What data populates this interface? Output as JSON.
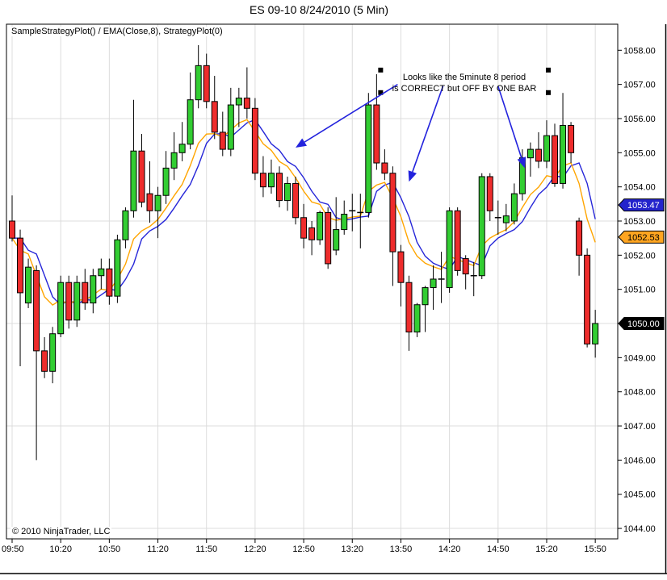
{
  "title": "ES 09-10  8/24/2010 (5 Min)",
  "indicator_label": "SampleStrategyPlot() / EMA(Close,8), StrategyPlot(0)",
  "copyright": "© 2010 NinjaTrader, LLC",
  "annotation": {
    "line1": "Looks like the 5minute 8 period",
    "line2": "is CORRECT but OFF BY ONE BAR"
  },
  "colors": {
    "background": "#ffffff",
    "border": "#000000",
    "grid": "#dcdcdc",
    "candle_up": "#32cd32",
    "candle_down": "#ee2c2c",
    "candle_outline": "#000000",
    "ema_line": "#ffa500",
    "strategy_line": "#2626d8",
    "arrow": "#2323dd",
    "marker": "#000000",
    "tag_blue_bg": "#2323cc",
    "tag_orange_bg": "#ffa520",
    "tag_black_bg": "#000000",
    "tag_light_text": "#ffffff",
    "tag_dark_text": "#000000",
    "text": "#000000"
  },
  "price_axis": {
    "labels": [
      "1058.00",
      "1057.00",
      "1056.00",
      "1055.00",
      "1054.00",
      "1053.00",
      "1052.00",
      "1051.00",
      "1050.00",
      "1049.00",
      "1048.00",
      "1047.00",
      "1046.00",
      "1045.00",
      "1044.00"
    ],
    "top_price": 1058,
    "step": 1,
    "tags": [
      {
        "label": "1053.47",
        "value": 1053.47,
        "style": "blue"
      },
      {
        "label": "1052.53",
        "value": 1052.53,
        "style": "orange"
      },
      {
        "label": "1050.00",
        "value": 1050.0,
        "style": "black"
      }
    ]
  },
  "time_axis": {
    "labels": [
      "09:50",
      "10:20",
      "10:50",
      "11:20",
      "11:50",
      "12:20",
      "12:50",
      "13:20",
      "13:50",
      "14:20",
      "14:50",
      "15:20",
      "15:50"
    ],
    "label_every_bars": 6
  },
  "chart_data": {
    "type": "candlestick",
    "title": "ES 09-10  8/24/2010 (5 Min)",
    "interval": "5 Min",
    "ylim": [
      1043.7,
      1058.75
    ],
    "grid_h_prices": [
      1056,
      1053,
      1050,
      1047,
      1044
    ],
    "last_price": "1050.00",
    "overlays": [
      {
        "name": "EMA(Close,8)",
        "type": "ema",
        "period": 8,
        "color": "#ffa500",
        "last_value": "1052.53"
      },
      {
        "name": "StrategyPlot(0)",
        "type": "ema_shifted_one_bar",
        "period": 8,
        "color": "#2626d8",
        "last_value": "1053.47"
      }
    ],
    "bars": [
      {
        "t": "09:50",
        "o": 1053.0,
        "h": 1053.75,
        "l": 1052.4,
        "c": 1052.5
      },
      {
        "t": "09:55",
        "o": 1052.5,
        "h": 1052.75,
        "l": 1048.75,
        "c": 1050.9
      },
      {
        "t": "10:00",
        "o": 1050.6,
        "h": 1051.9,
        "l": 1050.45,
        "c": 1051.65
      },
      {
        "t": "10:05",
        "o": 1051.55,
        "h": 1051.7,
        "l": 1046.0,
        "c": 1049.2
      },
      {
        "t": "10:10",
        "o": 1049.2,
        "h": 1049.6,
        "l": 1048.4,
        "c": 1048.6
      },
      {
        "t": "10:15",
        "o": 1048.6,
        "h": 1049.9,
        "l": 1048.25,
        "c": 1049.7
      },
      {
        "t": "10:20",
        "o": 1049.7,
        "h": 1051.4,
        "l": 1049.6,
        "c": 1051.2
      },
      {
        "t": "10:25",
        "o": 1051.2,
        "h": 1051.4,
        "l": 1049.85,
        "c": 1050.1
      },
      {
        "t": "10:30",
        "o": 1050.1,
        "h": 1051.4,
        "l": 1049.9,
        "c": 1051.2
      },
      {
        "t": "10:35",
        "o": 1051.2,
        "h": 1051.6,
        "l": 1050.4,
        "c": 1050.6
      },
      {
        "t": "10:40",
        "o": 1050.6,
        "h": 1051.6,
        "l": 1050.3,
        "c": 1051.4
      },
      {
        "t": "10:45",
        "o": 1051.4,
        "h": 1051.9,
        "l": 1051.0,
        "c": 1051.6
      },
      {
        "t": "10:50",
        "o": 1051.6,
        "h": 1051.9,
        "l": 1050.55,
        "c": 1050.8
      },
      {
        "t": "10:55",
        "o": 1050.8,
        "h": 1052.6,
        "l": 1050.6,
        "c": 1052.45
      },
      {
        "t": "11:00",
        "o": 1052.45,
        "h": 1053.4,
        "l": 1052.2,
        "c": 1053.3
      },
      {
        "t": "11:05",
        "o": 1053.3,
        "h": 1056.55,
        "l": 1053.1,
        "c": 1055.05
      },
      {
        "t": "11:10",
        "o": 1055.05,
        "h": 1055.55,
        "l": 1053.4,
        "c": 1053.55
      },
      {
        "t": "11:15",
        "o": 1053.8,
        "h": 1054.75,
        "l": 1052.95,
        "c": 1053.3
      },
      {
        "t": "11:20",
        "o": 1053.3,
        "h": 1054.0,
        "l": 1052.5,
        "c": 1053.75
      },
      {
        "t": "11:25",
        "o": 1053.75,
        "h": 1055.05,
        "l": 1053.5,
        "c": 1054.55
      },
      {
        "t": "11:30",
        "o": 1054.55,
        "h": 1055.6,
        "l": 1054.2,
        "c": 1055.0
      },
      {
        "t": "11:35",
        "o": 1055.0,
        "h": 1055.9,
        "l": 1054.75,
        "c": 1055.25
      },
      {
        "t": "11:40",
        "o": 1055.25,
        "h": 1057.35,
        "l": 1055.1,
        "c": 1056.55
      },
      {
        "t": "11:45",
        "o": 1056.55,
        "h": 1058.15,
        "l": 1056.3,
        "c": 1057.55
      },
      {
        "t": "11:50",
        "o": 1057.55,
        "h": 1057.9,
        "l": 1056.3,
        "c": 1056.5
      },
      {
        "t": "11:55",
        "o": 1056.5,
        "h": 1057.25,
        "l": 1055.4,
        "c": 1055.6
      },
      {
        "t": "12:00",
        "o": 1055.6,
        "h": 1056.2,
        "l": 1054.9,
        "c": 1055.1
      },
      {
        "t": "12:05",
        "o": 1055.1,
        "h": 1056.9,
        "l": 1054.9,
        "c": 1056.4
      },
      {
        "t": "12:10",
        "o": 1056.4,
        "h": 1056.9,
        "l": 1055.75,
        "c": 1056.6
      },
      {
        "t": "12:15",
        "o": 1056.6,
        "h": 1057.5,
        "l": 1056.0,
        "c": 1056.3
      },
      {
        "t": "12:20",
        "o": 1056.3,
        "h": 1056.6,
        "l": 1054.2,
        "c": 1054.4
      },
      {
        "t": "12:25",
        "o": 1054.4,
        "h": 1054.9,
        "l": 1053.7,
        "c": 1054.0
      },
      {
        "t": "12:30",
        "o": 1054.0,
        "h": 1054.8,
        "l": 1053.8,
        "c": 1054.4
      },
      {
        "t": "12:35",
        "o": 1054.4,
        "h": 1054.6,
        "l": 1053.4,
        "c": 1053.6
      },
      {
        "t": "12:40",
        "o": 1053.6,
        "h": 1054.3,
        "l": 1053.3,
        "c": 1054.1
      },
      {
        "t": "12:45",
        "o": 1054.1,
        "h": 1054.3,
        "l": 1052.9,
        "c": 1053.1
      },
      {
        "t": "12:50",
        "o": 1053.1,
        "h": 1053.5,
        "l": 1052.2,
        "c": 1052.5
      },
      {
        "t": "12:55",
        "o": 1052.8,
        "h": 1053.0,
        "l": 1052.0,
        "c": 1052.45
      },
      {
        "t": "13:00",
        "o": 1052.45,
        "h": 1053.3,
        "l": 1052.3,
        "c": 1053.25
      },
      {
        "t": "13:05",
        "o": 1053.25,
        "h": 1053.4,
        "l": 1051.6,
        "c": 1051.75
      },
      {
        "t": "13:10",
        "o": 1052.15,
        "h": 1053.7,
        "l": 1052.0,
        "c": 1052.75
      },
      {
        "t": "13:15",
        "o": 1052.75,
        "h": 1053.6,
        "l": 1052.6,
        "c": 1053.2
      },
      {
        "t": "13:20",
        "o": 1053.3,
        "h": 1053.8,
        "l": 1052.7,
        "c": 1053.3
      },
      {
        "t": "13:25",
        "o": 1053.3,
        "h": 1053.8,
        "l": 1052.2,
        "c": 1053.25
      },
      {
        "t": "13:30",
        "o": 1053.25,
        "h": 1056.75,
        "l": 1053.1,
        "c": 1056.4
      },
      {
        "t": "13:35",
        "o": 1056.4,
        "h": 1057.3,
        "l": 1054.5,
        "c": 1054.7
      },
      {
        "t": "13:40",
        "o": 1054.7,
        "h": 1055.1,
        "l": 1054.2,
        "c": 1054.4
      },
      {
        "t": "13:45",
        "o": 1054.4,
        "h": 1054.6,
        "l": 1051.1,
        "c": 1052.1
      },
      {
        "t": "13:50",
        "o": 1052.1,
        "h": 1052.3,
        "l": 1050.5,
        "c": 1051.2
      },
      {
        "t": "13:55",
        "o": 1051.2,
        "h": 1051.4,
        "l": 1049.2,
        "c": 1049.75
      },
      {
        "t": "14:00",
        "o": 1049.75,
        "h": 1050.6,
        "l": 1049.6,
        "c": 1050.55
      },
      {
        "t": "14:05",
        "o": 1050.55,
        "h": 1051.1,
        "l": 1049.75,
        "c": 1051.05
      },
      {
        "t": "14:10",
        "o": 1051.05,
        "h": 1051.7,
        "l": 1050.4,
        "c": 1051.3
      },
      {
        "t": "14:15",
        "o": 1051.3,
        "h": 1052.1,
        "l": 1050.6,
        "c": 1051.3
      },
      {
        "t": "14:20",
        "o": 1051.05,
        "h": 1053.4,
        "l": 1050.9,
        "c": 1053.3
      },
      {
        "t": "14:25",
        "o": 1053.3,
        "h": 1053.4,
        "l": 1051.4,
        "c": 1051.55
      },
      {
        "t": "14:30",
        "o": 1051.9,
        "h": 1052.0,
        "l": 1051.0,
        "c": 1051.45
      },
      {
        "t": "14:35",
        "o": 1051.45,
        "h": 1051.8,
        "l": 1050.8,
        "c": 1051.4
      },
      {
        "t": "14:40",
        "o": 1051.4,
        "h": 1054.4,
        "l": 1051.3,
        "c": 1054.3
      },
      {
        "t": "14:45",
        "o": 1054.3,
        "h": 1054.4,
        "l": 1053.0,
        "c": 1053.3
      },
      {
        "t": "14:50",
        "o": 1053.1,
        "h": 1053.6,
        "l": 1052.6,
        "c": 1053.1
      },
      {
        "t": "14:55",
        "o": 1052.95,
        "h": 1053.5,
        "l": 1052.7,
        "c": 1053.15
      },
      {
        "t": "15:00",
        "o": 1053.0,
        "h": 1054.1,
        "l": 1052.9,
        "c": 1053.8
      },
      {
        "t": "15:05",
        "o": 1053.8,
        "h": 1055.1,
        "l": 1053.6,
        "c": 1054.85
      },
      {
        "t": "15:10",
        "o": 1054.85,
        "h": 1055.3,
        "l": 1054.3,
        "c": 1055.1
      },
      {
        "t": "15:15",
        "o": 1055.1,
        "h": 1055.6,
        "l": 1054.55,
        "c": 1054.75
      },
      {
        "t": "15:20",
        "o": 1054.75,
        "h": 1055.95,
        "l": 1054.55,
        "c": 1055.5
      },
      {
        "t": "15:25",
        "o": 1055.5,
        "h": 1055.85,
        "l": 1054.0,
        "c": 1054.1
      },
      {
        "t": "15:30",
        "o": 1054.1,
        "h": 1056.75,
        "l": 1053.95,
        "c": 1055.8
      },
      {
        "t": "15:35",
        "o": 1055.8,
        "h": 1055.9,
        "l": 1054.7,
        "c": 1055.0
      },
      {
        "t": "15:40",
        "o": 1053.0,
        "h": 1053.1,
        "l": 1051.4,
        "c": 1052.0
      },
      {
        "t": "15:45",
        "o": 1052.0,
        "h": 1052.2,
        "l": 1049.3,
        "c": 1049.4
      },
      {
        "t": "15:50",
        "o": 1049.4,
        "h": 1050.4,
        "l": 1049.0,
        "c": 1050.0
      }
    ],
    "markers": [
      {
        "bar": 45.5,
        "price": 1057.42
      },
      {
        "bar": 45.5,
        "price": 1056.76
      },
      {
        "bar": 66.2,
        "price": 1057.42
      },
      {
        "bar": 66.2,
        "price": 1056.76
      }
    ],
    "arrows": [
      {
        "from": {
          "bar": 47.6,
          "price": 1057.0
        },
        "to": {
          "bar": 35.0,
          "price": 1055.15
        }
      },
      {
        "from": {
          "bar": 53.2,
          "price": 1056.95
        },
        "to": {
          "bar": 49.0,
          "price": 1054.15
        }
      },
      {
        "from": {
          "bar": 60.0,
          "price": 1056.95
        },
        "to": {
          "bar": 63.3,
          "price": 1054.55
        }
      }
    ]
  }
}
